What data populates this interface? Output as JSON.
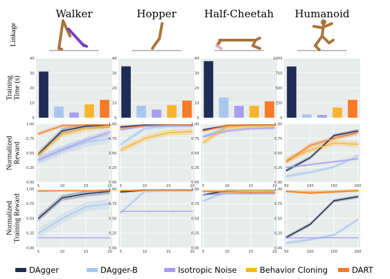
{
  "figure": {
    "environments": [
      "Walker",
      "Hopper",
      "Half-Cheetah",
      "Humanoid"
    ],
    "row_labels": [
      [
        "Linkage"
      ],
      [
        "Training",
        "Time (s)"
      ],
      [
        "Normalized",
        "Reward"
      ],
      [
        "Normalized",
        "Training Reward"
      ]
    ]
  },
  "legend": [
    {
      "name": "DAgger",
      "color": "#1f2d55"
    },
    {
      "name": "DAgger-B",
      "color": "#a9c6ee"
    },
    {
      "name": "Isotropic Noise",
      "color": "#a79ef0"
    },
    {
      "name": "Behavior Cloning",
      "color": "#f9b42d"
    },
    {
      "name": "DART",
      "color": "#f77a26"
    }
  ],
  "chart_data": [
    {
      "type": "bar",
      "env": "Walker",
      "row": "Training Time (s)",
      "categories": [
        "DAgger",
        "DAgger-B",
        "Isotropic Noise",
        "Behavior Cloning",
        "DART"
      ],
      "values": [
        31,
        7.5,
        3.5,
        9,
        12
      ],
      "ylim": [
        0,
        40
      ],
      "yticks": [
        0,
        10,
        20,
        30,
        40
      ]
    },
    {
      "type": "bar",
      "env": "Hopper",
      "row": "Training Time (s)",
      "categories": [
        "DAgger",
        "DAgger-B",
        "Isotropic Noise",
        "Behavior Cloning",
        "DART"
      ],
      "values": [
        34.5,
        8,
        5.5,
        8.5,
        11.5
      ],
      "ylim": [
        0,
        40
      ],
      "yticks": [
        0,
        10,
        20,
        30,
        40
      ]
    },
    {
      "type": "bar",
      "env": "Half-Cheetah",
      "row": "Training Time (s)",
      "categories": [
        "DAgger",
        "DAgger-B",
        "Isotropic Noise",
        "Behavior Cloning",
        "DART"
      ],
      "values": [
        38,
        13.5,
        8,
        8,
        11
      ],
      "ylim": [
        0,
        40
      ],
      "yticks": [
        0,
        10,
        20,
        30,
        40
      ]
    },
    {
      "type": "bar",
      "env": "Humanoid",
      "row": "Training Time (s)",
      "categories": [
        "DAgger",
        "DAgger-B",
        "Isotropic Noise",
        "Behavior Cloning",
        "DART"
      ],
      "values": [
        860,
        55,
        45,
        170,
        300
      ],
      "ylim": [
        0,
        1000
      ],
      "yticks": [
        0,
        250,
        500,
        750,
        1000
      ]
    },
    {
      "type": "line",
      "env": "Walker",
      "row": "Normalized Reward",
      "x": [
        5,
        10,
        15,
        20
      ],
      "xlim": [
        4.5,
        20.5
      ],
      "ylim": [
        0,
        1
      ],
      "xticks": [
        5,
        10,
        15,
        20
      ],
      "yticks": [
        0,
        0.25,
        0.5,
        0.75,
        1.0
      ],
      "series": [
        {
          "name": "DAgger",
          "values": [
            0.48,
            0.88,
            0.96,
            0.98
          ],
          "band": 0.05
        },
        {
          "name": "DAgger-B",
          "values": [
            0.38,
            0.55,
            0.68,
            0.75
          ],
          "band": 0.08
        },
        {
          "name": "Isotropic Noise",
          "values": [
            0.38,
            0.56,
            0.72,
            0.86
          ],
          "band": 0.05
        },
        {
          "name": "Behavior Cloning",
          "values": [
            0.47,
            0.82,
            0.92,
            0.97
          ],
          "band": 0.05
        },
        {
          "name": "DART",
          "values": [
            0.83,
            0.97,
            0.98,
            0.98
          ],
          "band": 0.03
        }
      ]
    },
    {
      "type": "line",
      "env": "Hopper",
      "row": "Normalized Reward",
      "x": [
        5,
        10,
        15,
        20
      ],
      "xlim": [
        4.5,
        20.5
      ],
      "ylim": [
        0,
        1
      ],
      "xticks": [
        5,
        10,
        15,
        20
      ],
      "yticks": [
        0,
        0.25,
        0.5,
        0.75,
        1.0
      ],
      "series": [
        {
          "name": "DAgger",
          "values": [
            0.95,
            0.98,
            0.98,
            0.98
          ],
          "band": 0.02
        },
        {
          "name": "DAgger-B",
          "values": [
            0.65,
            0.92,
            0.96,
            0.97
          ],
          "band": 0.04
        },
        {
          "name": "Isotropic Noise",
          "values": [
            0.9,
            0.96,
            0.97,
            0.97
          ],
          "band": 0.02
        },
        {
          "name": "Behavior Cloning",
          "values": [
            0.55,
            0.75,
            0.85,
            0.87
          ],
          "band": 0.05
        },
        {
          "name": "DART",
          "values": [
            0.93,
            0.97,
            0.98,
            0.98
          ],
          "band": 0.02
        }
      ]
    },
    {
      "type": "line",
      "env": "Half-Cheetah",
      "row": "Normalized Reward",
      "x": [
        5,
        10,
        15,
        20
      ],
      "xlim": [
        4.5,
        20.5
      ],
      "ylim": [
        0,
        1
      ],
      "xticks": [
        5,
        10,
        15,
        20
      ],
      "yticks": [
        0,
        0.25,
        0.5,
        0.75,
        1.0
      ],
      "series": [
        {
          "name": "DAgger",
          "values": [
            0.9,
            0.97,
            0.98,
            0.98
          ],
          "band": 0.02
        },
        {
          "name": "DAgger-B",
          "values": [
            0.78,
            0.95,
            0.97,
            0.98
          ],
          "band": 0.03
        },
        {
          "name": "Isotropic Noise",
          "values": [
            0.78,
            0.88,
            0.92,
            0.93
          ],
          "band": 0.03
        },
        {
          "name": "Behavior Cloning",
          "values": [
            0.68,
            0.95,
            0.97,
            0.97
          ],
          "band": 0.05
        },
        {
          "name": "DART",
          "values": [
            0.88,
            0.97,
            0.98,
            0.98
          ],
          "band": 0.02
        }
      ]
    },
    {
      "type": "line",
      "env": "Humanoid",
      "row": "Normalized Reward",
      "x": [
        50,
        100,
        150,
        200
      ],
      "xlim": [
        45,
        205
      ],
      "ylim": [
        0,
        1
      ],
      "xticks": [
        50,
        100,
        150,
        200
      ],
      "yticks": [
        0,
        0.25,
        0.5,
        0.75,
        1.0
      ],
      "series": [
        {
          "name": "DAgger",
          "values": [
            0.2,
            0.42,
            0.8,
            0.88
          ],
          "band": 0.03
        },
        {
          "name": "DAgger-B",
          "values": [
            0.1,
            0.17,
            0.26,
            0.45
          ],
          "band": 0.03
        },
        {
          "name": "Isotropic Noise",
          "values": [
            0.25,
            0.3,
            0.35,
            0.4
          ],
          "band": 0.02
        },
        {
          "name": "Behavior Cloning",
          "values": [
            0.38,
            0.55,
            0.67,
            0.65
          ],
          "band": 0.05
        },
        {
          "name": "DART",
          "values": [
            0.35,
            0.63,
            0.75,
            0.85
          ],
          "band": 0.04
        }
      ]
    },
    {
      "type": "line",
      "env": "Walker",
      "row": "Normalized Training Reward",
      "x": [
        5,
        10,
        15,
        20
      ],
      "xlim": [
        4.5,
        20.5
      ],
      "ylim": [
        0,
        1
      ],
      "xticks": [
        5,
        10,
        15,
        20
      ],
      "yticks": [
        0,
        0.25,
        0.5,
        0.75,
        1.0
      ],
      "series": [
        {
          "name": "DAgger",
          "values": [
            0.5,
            0.85,
            0.92,
            0.96
          ],
          "band": 0.05
        },
        {
          "name": "DAgger-B",
          "values": [
            0.25,
            0.5,
            0.7,
            0.75
          ],
          "band": 0.08
        },
        {
          "name": "Isotropic Noise",
          "values": [
            0.17,
            0.17,
            0.17,
            0.17
          ],
          "band": 0
        },
        {
          "name": "Behavior Cloning",
          "values": [
            0.96,
            0.97,
            0.97,
            0.97
          ],
          "band": 0.01
        },
        {
          "name": "DART",
          "values": [
            0.97,
            0.97,
            0.97,
            0.97
          ],
          "band": 0.01
        }
      ]
    },
    {
      "type": "line",
      "env": "Hopper",
      "row": "Normalized Training Reward",
      "x": [
        5,
        10,
        15,
        20
      ],
      "xlim": [
        4.5,
        20.5
      ],
      "ylim": [
        0,
        1
      ],
      "xticks": [
        5,
        10,
        15,
        20
      ],
      "yticks": [
        0,
        0.25,
        0.5,
        0.75,
        1.0
      ],
      "series": [
        {
          "name": "DAgger",
          "values": [
            0.95,
            0.98,
            0.98,
            0.98
          ],
          "band": 0.02
        },
        {
          "name": "DAgger-B",
          "values": [
            0.6,
            0.96,
            0.97,
            0.98
          ],
          "band": 0.03
        },
        {
          "name": "Isotropic Noise",
          "values": [
            0.62,
            0.62,
            0.62,
            0.62
          ],
          "band": 0
        },
        {
          "name": "Behavior Cloning",
          "values": [
            0.97,
            0.98,
            0.98,
            0.98
          ],
          "band": 0.01
        },
        {
          "name": "DART",
          "values": [
            0.97,
            0.98,
            0.98,
            0.98
          ],
          "band": 0.01
        }
      ]
    },
    {
      "type": "line",
      "env": "Half-Cheetah",
      "row": "Normalized Training Reward",
      "x": [
        5,
        10,
        15,
        20
      ],
      "xlim": [
        4.5,
        20.5
      ],
      "ylim": [
        0,
        1
      ],
      "xticks": [
        5,
        10,
        15,
        20
      ],
      "yticks": [
        0,
        0.25,
        0.5,
        0.75,
        1.0
      ],
      "series": [
        {
          "name": "DAgger",
          "values": [
            0.9,
            0.97,
            0.97,
            0.97
          ],
          "band": 0.02
        },
        {
          "name": "DAgger-B",
          "values": [
            0.8,
            0.95,
            0.96,
            0.97
          ],
          "band": 0.03
        },
        {
          "name": "Isotropic Noise",
          "values": [
            0.9,
            0.92,
            0.92,
            0.92
          ],
          "band": 0.01
        },
        {
          "name": "Behavior Cloning",
          "values": [
            0.97,
            0.97,
            0.97,
            0.97
          ],
          "band": 0.01
        },
        {
          "name": "DART",
          "values": [
            0.96,
            0.95,
            0.94,
            0.94
          ],
          "band": 0.01
        }
      ]
    },
    {
      "type": "line",
      "env": "Humanoid",
      "row": "Normalized Training Reward",
      "x": [
        50,
        100,
        150,
        200
      ],
      "xlim": [
        45,
        205
      ],
      "ylim": [
        0,
        1
      ],
      "xticks": [
        50,
        100,
        150,
        200
      ],
      "yticks": [
        0,
        0.25,
        0.5,
        0.75,
        1.0
      ],
      "series": [
        {
          "name": "DAgger",
          "values": [
            0.18,
            0.4,
            0.8,
            0.87
          ],
          "band": 0.03
        },
        {
          "name": "DAgger-B",
          "values": [
            0.08,
            0.14,
            0.22,
            0.48
          ],
          "band": 0.03
        },
        {
          "name": "Isotropic Noise",
          "values": [
            0.17,
            0.17,
            0.17,
            0.17
          ],
          "band": 0
        },
        {
          "name": "Behavior Cloning",
          "values": [
            0.96,
            0.95,
            0.96,
            0.98
          ],
          "band": 0.02
        },
        {
          "name": "DART",
          "values": [
            0.96,
            0.93,
            0.95,
            0.97
          ],
          "band": 0.02
        }
      ]
    }
  ]
}
